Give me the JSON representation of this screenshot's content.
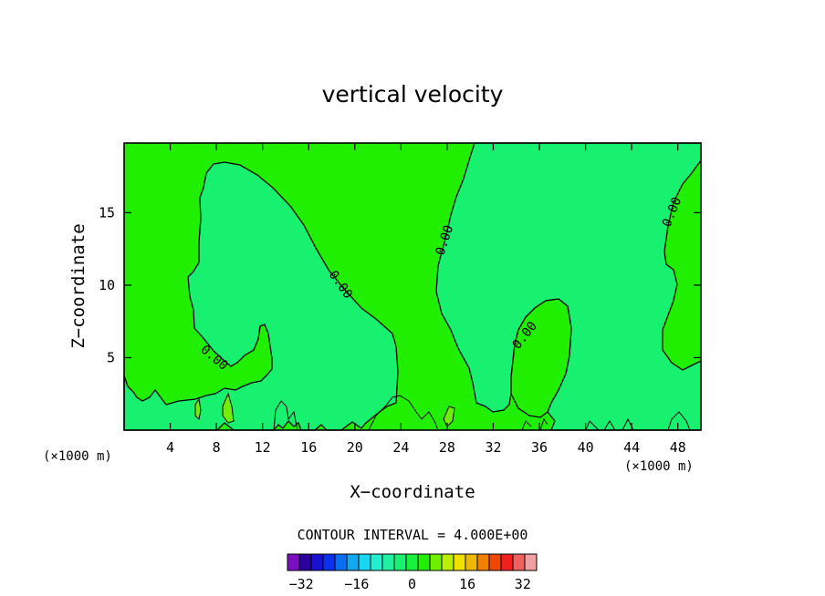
{
  "chart_data": {
    "type": "contour",
    "title": "vertical velocity",
    "xlabel": "X−coordinate",
    "ylabel": "Z−coordinate",
    "x_unit": "(×1000 m)",
    "y_unit": "(×1000 m)",
    "xlim": [
      0,
      50
    ],
    "ylim": [
      0,
      19.8
    ],
    "x_ticks": [
      4,
      8,
      12,
      16,
      20,
      24,
      28,
      32,
      36,
      40,
      44,
      48
    ],
    "y_ticks": [
      5,
      10,
      15
    ],
    "contour_interval_text": "CONTOUR INTERVAL = 4.000E+00",
    "contour_labels": [
      "0.00",
      "0.00",
      "0.00",
      "0.00",
      "0.00"
    ],
    "colorbar": {
      "ticks": [
        -32,
        -16,
        0,
        16,
        32
      ],
      "tick_labels": [
        "−32",
        "−16",
        "0",
        "16",
        "32"
      ],
      "colors": [
        "#7a10c0",
        "#2a00a0",
        "#1a10d0",
        "#0a30f0",
        "#0870f0",
        "#10a8f0",
        "#18d8f0",
        "#20f0d0",
        "#20f0a0",
        "#18f070",
        "#18f040",
        "#20f000",
        "#70f000",
        "#b8f000",
        "#f0e000",
        "#f0b800",
        "#f08000",
        "#f04800",
        "#f02020",
        "#f06060",
        "#f0a0a0"
      ],
      "min": -36,
      "max": 36
    },
    "regions": {
      "negative_small": "#18f070",
      "positive_small": "#20f000",
      "positive_medium": "#70f000"
    }
  }
}
